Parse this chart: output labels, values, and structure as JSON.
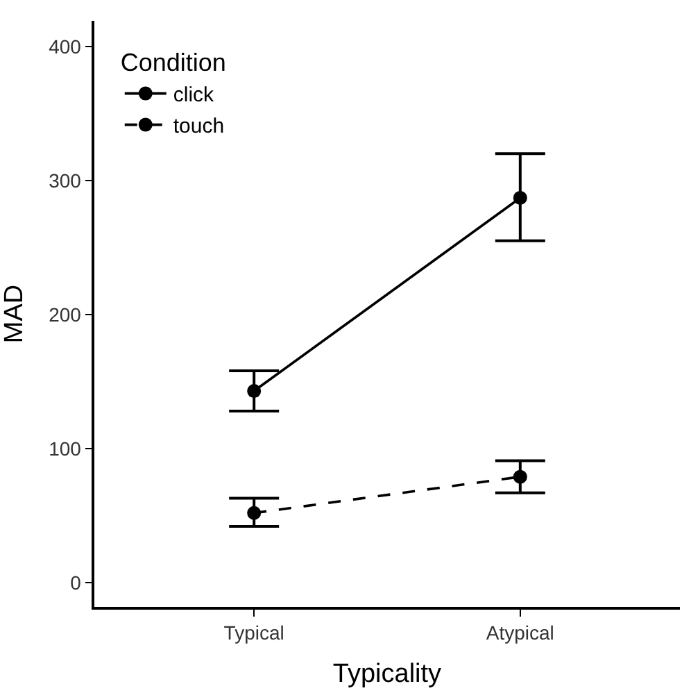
{
  "chart_data": {
    "type": "line",
    "xlabel": "Typicality",
    "ylabel": "MAD",
    "legend_title": "Condition",
    "categories": [
      "Typical",
      "Atypical"
    ],
    "series": [
      {
        "name": "click",
        "color": "#000000",
        "line_style": "solid",
        "values": [
          143,
          287
        ],
        "errors": [
          [
            128,
            158
          ],
          [
            255,
            320
          ]
        ]
      },
      {
        "name": "touch",
        "color": "#000000",
        "line_style": "dashed",
        "values": [
          52,
          79
        ],
        "errors": [
          [
            42,
            63
          ],
          [
            67,
            91
          ]
        ]
      }
    ],
    "ylim": [
      -18,
      419
    ],
    "yticks": [
      0,
      100,
      200,
      300,
      400
    ],
    "marker": "circle",
    "legend": "top left"
  }
}
